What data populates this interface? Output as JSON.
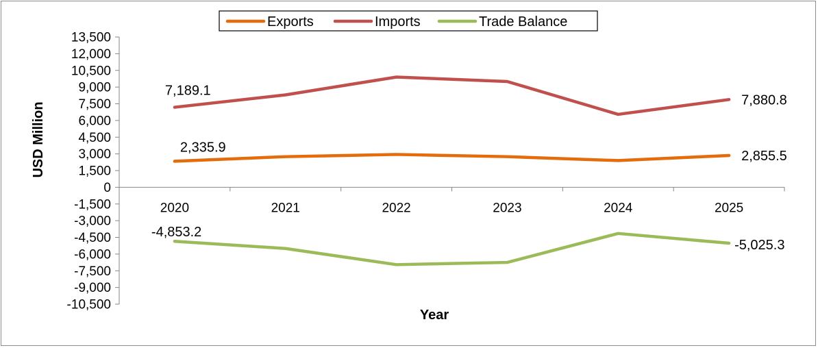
{
  "chart_data": {
    "type": "line",
    "title": "",
    "xlabel": "Year",
    "ylabel": "USD Million",
    "categories": [
      "2020",
      "2021",
      "2022",
      "2023",
      "2024",
      "2025"
    ],
    "ylim": [
      -10500,
      13500
    ],
    "yticks": [
      13500,
      12000,
      10500,
      9000,
      7500,
      6000,
      4500,
      3000,
      1500,
      0,
      -1500,
      -3000,
      -4500,
      -6000,
      -7500,
      -9000,
      -10500
    ],
    "ytick_labels": [
      "13,500",
      "12,000",
      "10,500",
      "9,000",
      "7,500",
      "6,000",
      "4,500",
      "3,000",
      "1,500",
      "0",
      "-1,500",
      "-3,000",
      "-4,500",
      "-6,000",
      "-7,500",
      "-9,000",
      "-10,500"
    ],
    "legend_position": "top",
    "grid": false,
    "series": [
      {
        "name": "Exports",
        "color": "#E46C0A",
        "values": [
          2335.9,
          2750,
          2950,
          2750,
          2400,
          2855.5
        ],
        "labels": [
          {
            "index": 0,
            "text": "2,335.9"
          },
          {
            "index": 5,
            "text": "2,855.5"
          }
        ]
      },
      {
        "name": "Imports",
        "color": "#C0504D",
        "values": [
          7189.1,
          8300,
          9900,
          9500,
          6550,
          7880.8
        ],
        "labels": [
          {
            "index": 0,
            "text": "7,189.1"
          },
          {
            "index": 5,
            "text": "7,880.8"
          }
        ]
      },
      {
        "name": "Trade Balance",
        "color": "#9BBB59",
        "values": [
          -4853.2,
          -5500,
          -6950,
          -6750,
          -4150,
          -5025.3
        ],
        "labels": [
          {
            "index": 0,
            "text": "-4,853.2"
          },
          {
            "index": 5,
            "text": "-5,025.3"
          }
        ]
      }
    ]
  }
}
